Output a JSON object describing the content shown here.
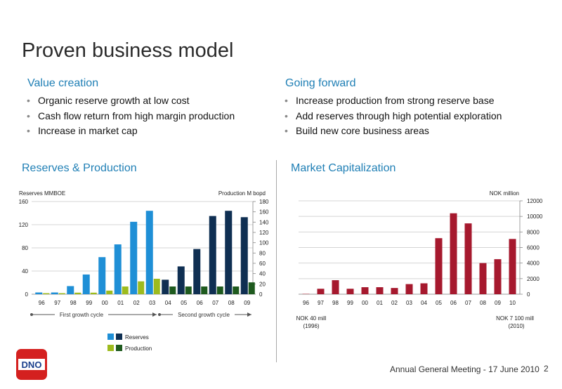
{
  "slide": {
    "title": "Proven business model",
    "footer": "Annual General Meeting - 17 June 2010",
    "page_number": "2",
    "logo_text": "DNO"
  },
  "value_creation": {
    "heading": "Value creation",
    "bullets": [
      "Organic reserve growth at low cost",
      "Cash flow return from high margin production",
      "Increase in market cap"
    ]
  },
  "going_forward": {
    "heading": "Going forward",
    "bullets": [
      "Increase production from strong reserve base",
      "Add reserves through high potential exploration",
      "Build new core business areas"
    ]
  },
  "bullet_glyph": "•",
  "chart_data": [
    {
      "type": "bar",
      "title": "Reserves & Production",
      "ylabel_left": "Reserves MMBOE",
      "ylabel_right": "Production M bopd",
      "categories": [
        "96",
        "97",
        "98",
        "99",
        "00",
        "01",
        "02",
        "03",
        "04",
        "05",
        "06",
        "07",
        "08",
        "09"
      ],
      "ylim_left": [
        0,
        160
      ],
      "yticks_left": [
        0,
        40,
        80,
        120,
        160
      ],
      "ylim_right": [
        0,
        180
      ],
      "yticks_right": [
        0,
        20,
        40,
        60,
        80,
        100,
        120,
        140,
        160,
        180
      ],
      "series": [
        {
          "name": "Reserves",
          "axis": "left",
          "values": [
            3,
            3,
            14,
            34,
            64,
            86,
            125,
            144,
            25,
            48,
            78,
            135,
            144,
            133
          ],
          "colors": [
            "#1f8fd6",
            "#1f8fd6",
            "#1f8fd6",
            "#1f8fd6",
            "#1f8fd6",
            "#1f8fd6",
            "#1f8fd6",
            "#1f8fd6",
            "#0f2f52",
            "#0f2f52",
            "#0f2f52",
            "#0f2f52",
            "#0f2f52",
            "#0f2f52"
          ]
        },
        {
          "name": "Production",
          "axis": "right",
          "values": [
            2,
            2,
            3,
            3,
            7,
            15,
            25,
            30,
            15,
            15,
            15,
            15,
            15,
            23
          ],
          "colors": [
            "#9dbb1e",
            "#9dbb1e",
            "#9dbb1e",
            "#9dbb1e",
            "#9dbb1e",
            "#9dbb1e",
            "#9dbb1e",
            "#9dbb1e",
            "#1e5a1e",
            "#1e5a1e",
            "#1e5a1e",
            "#1e5a1e",
            "#1e5a1e",
            "#1e5a1e"
          ]
        }
      ],
      "annotations": [
        "First growth cycle",
        "Second growth cycle"
      ],
      "legend": {
        "placement": "bottom",
        "items": [
          {
            "label": "Reserves",
            "colors": [
              "#1f8fd6",
              "#0f2f52"
            ]
          },
          {
            "label": "Production",
            "colors": [
              "#9dbb1e",
              "#1e5a1e"
            ]
          }
        ]
      },
      "grid": true
    },
    {
      "type": "bar",
      "title": "Market Capitalization",
      "ylabel": "NOK million",
      "categories": [
        "96",
        "97",
        "98",
        "99",
        "00",
        "01",
        "02",
        "03",
        "04",
        "05",
        "06",
        "07",
        "08",
        "09",
        "10"
      ],
      "values": [
        40,
        700,
        1800,
        700,
        900,
        900,
        800,
        1300,
        1400,
        7200,
        10400,
        9100,
        4000,
        4500,
        7100
      ],
      "ylim": [
        0,
        12000
      ],
      "yticks": [
        0,
        2000,
        4000,
        6000,
        8000,
        10000,
        12000
      ],
      "bar_color": "#a6192e",
      "annotations": [
        [
          "NOK 40 mill",
          "(1996)"
        ],
        [
          "NOK  7 100 mill",
          "(2010)"
        ]
      ],
      "grid": true
    }
  ]
}
